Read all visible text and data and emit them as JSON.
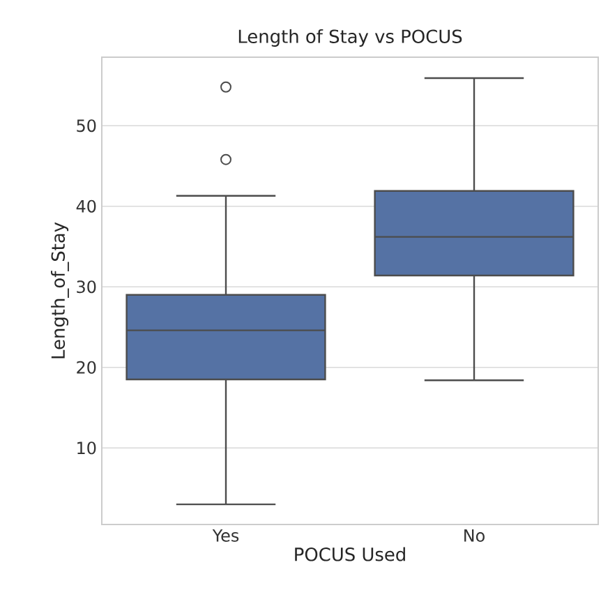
{
  "chart_data": {
    "type": "box",
    "title": "Length of Stay vs POCUS",
    "xlabel": "POCUS Used",
    "ylabel": "Length_of_Stay",
    "categories": [
      "Yes",
      "No"
    ],
    "color": "#5572a4",
    "boxes": [
      {
        "low": 3.0,
        "q1": 18.5,
        "median": 24.6,
        "q3": 29.0,
        "high": 41.3,
        "outliers": [
          45.8,
          54.8
        ]
      },
      {
        "low": 18.4,
        "q1": 31.4,
        "median": 36.2,
        "q3": 41.9,
        "high": 55.9
      }
    ],
    "ylim": [
      0.5,
      58.5
    ],
    "yticks": [
      10,
      20,
      30,
      40,
      50
    ],
    "grid": "y"
  }
}
